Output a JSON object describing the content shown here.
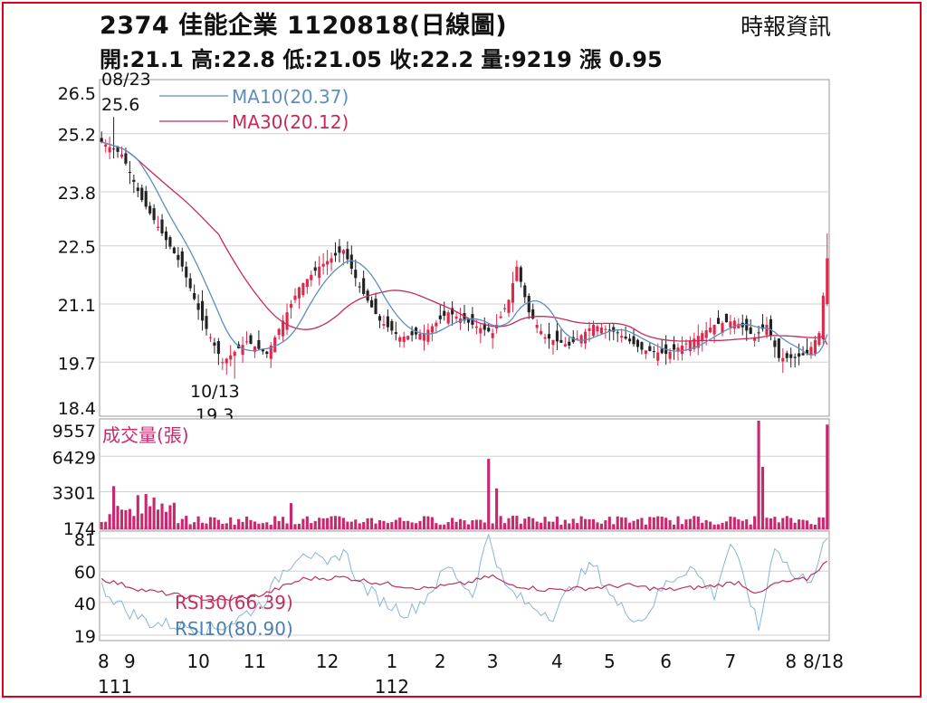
{
  "header": {
    "title": "2374  佳能企業 1120818(日線圖)",
    "source": "時報資訊",
    "summary": "開:21.1 高:22.8 低:21.05 收:22.2 量:9219 漲 0.95"
  },
  "colors": {
    "up": "#e0284a",
    "down": "#222222",
    "ma10": "#5b8fc0",
    "ma30": "#c8285a",
    "volume": "#c8286e",
    "rsi10": "#8ab4d8",
    "rsi30": "#c03060",
    "grid": "#d0d0d0",
    "border": "#e0001b"
  },
  "chart_data": [
    {
      "type": "candlestick",
      "title": "2374 佳能企業 1120818(日線圖)",
      "ylim": [
        18.4,
        26.5
      ],
      "yticks": [
        "26.5",
        "25.2",
        "23.8",
        "22.5",
        "21.1",
        "19.7",
        "18.4"
      ],
      "legend": [
        {
          "name": "MA10(20.37)",
          "color": "#5b8fc0"
        },
        {
          "name": "MA30(20.12)",
          "color": "#c8285a"
        }
      ],
      "annotations": [
        {
          "label": "08/23",
          "value": "25.6"
        },
        {
          "label": "10/13",
          "value": "19.3"
        }
      ],
      "close_anchors": [
        [
          0,
          25.0
        ],
        [
          5,
          24.7
        ],
        [
          10,
          23.6
        ],
        [
          15,
          22.8
        ],
        [
          20,
          22.0
        ],
        [
          25,
          20.7
        ],
        [
          30,
          19.7
        ],
        [
          36,
          20.2
        ],
        [
          41,
          19.9
        ],
        [
          44,
          20.5
        ],
        [
          49,
          21.5
        ],
        [
          54,
          22.0
        ],
        [
          60,
          22.4
        ],
        [
          64,
          21.5
        ],
        [
          69,
          20.7
        ],
        [
          74,
          20.3
        ],
        [
          80,
          20.4
        ],
        [
          86,
          20.9
        ],
        [
          92,
          20.6
        ],
        [
          97,
          20.4
        ],
        [
          101,
          21.2
        ],
        [
          103,
          22.0
        ],
        [
          106,
          20.9
        ],
        [
          110,
          20.3
        ],
        [
          116,
          20.1
        ],
        [
          122,
          20.6
        ],
        [
          128,
          20.4
        ],
        [
          134,
          20.0
        ],
        [
          140,
          19.9
        ],
        [
          146,
          20.2
        ],
        [
          152,
          20.6
        ],
        [
          157,
          20.7
        ],
        [
          162,
          20.3
        ],
        [
          165,
          20.6
        ],
        [
          168,
          19.8
        ],
        [
          172,
          19.8
        ],
        [
          175,
          19.9
        ],
        [
          178,
          20.4
        ],
        [
          180,
          22.2
        ]
      ],
      "ma10_last": 20.37,
      "ma30_last": 20.12,
      "close_last": 22.2,
      "high_last": 22.8,
      "low_last": 21.05,
      "open_last": 21.1
    },
    {
      "type": "bar",
      "title": "成交量(張)",
      "yticks": [
        "9557",
        "6429",
        "3301",
        "174"
      ],
      "ylim": [
        0,
        9557
      ],
      "baseline": 1000,
      "spikes": [
        [
          3,
          3800
        ],
        [
          9,
          3000
        ],
        [
          11,
          3100
        ],
        [
          13,
          2800
        ],
        [
          47,
          2300
        ],
        [
          96,
          6200
        ],
        [
          98,
          3600
        ],
        [
          163,
          9557
        ],
        [
          164,
          5500
        ],
        [
          180,
          9219
        ]
      ]
    },
    {
      "type": "line",
      "yticks": [
        "81",
        "60",
        "40",
        "19"
      ],
      "ylim": [
        19,
        81
      ],
      "series": [
        {
          "name": "RSI30(66.39)",
          "color": "#c03060",
          "anchors": [
            [
              0,
              55
            ],
            [
              10,
              48
            ],
            [
              20,
              44
            ],
            [
              30,
              41
            ],
            [
              40,
              45
            ],
            [
              50,
              55
            ],
            [
              60,
              56
            ],
            [
              70,
              52
            ],
            [
              80,
              49
            ],
            [
              90,
              52
            ],
            [
              97,
              57
            ],
            [
              100,
              52
            ],
            [
              110,
              48
            ],
            [
              120,
              49
            ],
            [
              130,
              51
            ],
            [
              140,
              48
            ],
            [
              150,
              50
            ],
            [
              158,
              53
            ],
            [
              163,
              45
            ],
            [
              167,
              52
            ],
            [
              175,
              55
            ],
            [
              180,
              66.39
            ]
          ]
        },
        {
          "name": "RSI10(80.90)",
          "color": "#8ab4d8",
          "anchors": [
            [
              0,
              50
            ],
            [
              6,
              35
            ],
            [
              12,
              27
            ],
            [
              20,
              25
            ],
            [
              28,
              23
            ],
            [
              33,
              28
            ],
            [
              40,
              40
            ],
            [
              45,
              60
            ],
            [
              50,
              74
            ],
            [
              56,
              62
            ],
            [
              60,
              74
            ],
            [
              64,
              52
            ],
            [
              70,
              40
            ],
            [
              76,
              33
            ],
            [
              80,
              42
            ],
            [
              86,
              63
            ],
            [
              92,
              45
            ],
            [
              96,
              84
            ],
            [
              100,
              50
            ],
            [
              106,
              38
            ],
            [
              112,
              32
            ],
            [
              118,
              55
            ],
            [
              122,
              64
            ],
            [
              128,
              38
            ],
            [
              134,
              28
            ],
            [
              140,
              52
            ],
            [
              146,
              63
            ],
            [
              152,
              45
            ],
            [
              156,
              78
            ],
            [
              160,
              50
            ],
            [
              163,
              22
            ],
            [
              167,
              78
            ],
            [
              172,
              55
            ],
            [
              176,
              56
            ],
            [
              180,
              80.9
            ]
          ]
        }
      ]
    }
  ],
  "x_axis": {
    "labels": [
      {
        "idx": 0,
        "top": "8",
        "bottom": "111"
      },
      {
        "idx": 7,
        "top": "9"
      },
      {
        "idx": 24,
        "top": "10"
      },
      {
        "idx": 38,
        "top": "11"
      },
      {
        "idx": 56,
        "top": "12"
      },
      {
        "idx": 72,
        "top": "1",
        "bottom": "112"
      },
      {
        "idx": 84,
        "top": "2"
      },
      {
        "idx": 97,
        "top": "3"
      },
      {
        "idx": 113,
        "top": "4"
      },
      {
        "idx": 126,
        "top": "5"
      },
      {
        "idx": 140,
        "top": "6"
      },
      {
        "idx": 156,
        "top": "7"
      },
      {
        "idx": 171,
        "top": "8"
      },
      {
        "idx": 177,
        "top": "8/18"
      }
    ]
  }
}
